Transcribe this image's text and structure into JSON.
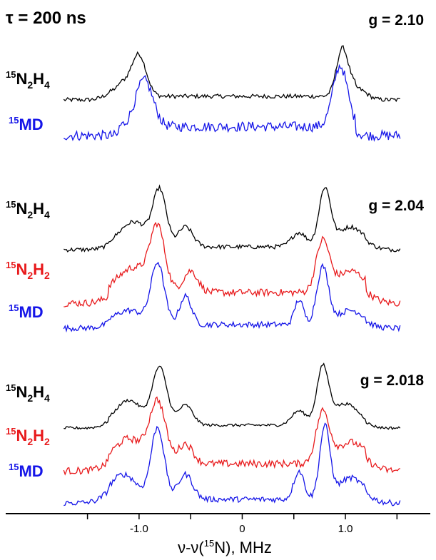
{
  "chart_data": {
    "type": "line",
    "title": "τ = 200 ns",
    "xlabel": {
      "prefix": "ν-ν(",
      "sup": "15",
      "suffix": "N), MHz"
    },
    "xlim": [
      -1.85,
      1.65
    ],
    "xticks": [
      -1.5,
      -1.0,
      -0.5,
      0,
      0.5,
      1.0,
      1.5
    ],
    "xtick_labels": [
      "",
      "-1.0",
      "",
      "0",
      "",
      "1.0",
      ""
    ],
    "colors": {
      "black": "#000000",
      "red": "#e8191b",
      "blue": "#1515e8"
    },
    "panels": [
      {
        "g_label": "g = 2.10",
        "series": [
          {
            "id": "s1",
            "name_parts": [
              "15",
              "N",
              "2",
              "H",
              "4"
            ],
            "color": "black",
            "baseline": 140,
            "noise": 3,
            "peaks": [
              {
                "x": -1.0,
                "a": 55,
                "w": 0.1
              },
              {
                "x": -1.18,
                "a": 18,
                "w": 0.15
              },
              {
                "x": 0.97,
                "a": 65,
                "w": 0.08
              },
              {
                "x": 1.12,
                "a": 15,
                "w": 0.12
              }
            ],
            "plateau": {
              "a": 10,
              "from": -1.2,
              "to": 1.1
            }
          },
          {
            "id": "s2",
            "name_parts": [
              "15",
              "MD"
            ],
            "color": "blue",
            "baseline": 190,
            "noise": 7,
            "peaks": [
              {
                "x": -0.95,
                "a": 65,
                "w": 0.12
              },
              {
                "x": 0.95,
                "a": 85,
                "w": 0.1
              }
            ],
            "plateau": {
              "a": 25,
              "from": -1.2,
              "to": 1.1
            }
          }
        ]
      },
      {
        "g_label": "g = 2.04",
        "series": [
          {
            "id": "s3",
            "name_parts": [
              "15",
              "N",
              "2",
              "H",
              "4"
            ],
            "color": "black",
            "baseline": 350,
            "noise": 3,
            "peaks": [
              {
                "x": -0.8,
                "a": 75,
                "w": 0.09
              },
              {
                "x": -1.05,
                "a": 35,
                "w": 0.2
              },
              {
                "x": -0.55,
                "a": 28,
                "w": 0.1
              },
              {
                "x": 0.8,
                "a": 80,
                "w": 0.08
              },
              {
                "x": 1.05,
                "a": 28,
                "w": 0.18
              },
              {
                "x": 0.55,
                "a": 20,
                "w": 0.1
              }
            ],
            "plateau": {
              "a": 8,
              "from": -1.3,
              "to": 1.2
            }
          },
          {
            "id": "s4",
            "name_parts": [
              "15",
              "N",
              "2",
              "H",
              "2"
            ],
            "color": "red",
            "baseline": 425,
            "noise": 5,
            "peaks": [
              {
                "x": -0.82,
                "a": 85,
                "w": 0.1
              },
              {
                "x": -1.05,
                "a": 35,
                "w": 0.22
              },
              {
                "x": -0.5,
                "a": 30,
                "w": 0.1
              },
              {
                "x": 0.78,
                "a": 70,
                "w": 0.09
              },
              {
                "x": 1.05,
                "a": 30,
                "w": 0.2
              }
            ],
            "plateau": {
              "a": 30,
              "from": -1.3,
              "to": 1.2
            }
          },
          {
            "id": "s5",
            "name_parts": [
              "15",
              "MD"
            ],
            "color": "blue",
            "baseline": 460,
            "noise": 4,
            "peaks": [
              {
                "x": -0.82,
                "a": 85,
                "w": 0.09
              },
              {
                "x": -1.1,
                "a": 20,
                "w": 0.2
              },
              {
                "x": -0.55,
                "a": 40,
                "w": 0.08
              },
              {
                "x": 0.78,
                "a": 80,
                "w": 0.08
              },
              {
                "x": 0.55,
                "a": 35,
                "w": 0.06
              },
              {
                "x": 1.05,
                "a": 20,
                "w": 0.18
              }
            ],
            "plateau": {
              "a": 10,
              "from": -1.3,
              "to": 1.2
            }
          }
        ]
      },
      {
        "g_label": "g = 2.018",
        "series": [
          {
            "id": "s6",
            "name_parts": [
              "15",
              "N",
              "2",
              "H",
              "4"
            ],
            "color": "black",
            "baseline": 600,
            "noise": 2,
            "peaks": [
              {
                "x": -0.8,
                "a": 80,
                "w": 0.1
              },
              {
                "x": -1.1,
                "a": 35,
                "w": 0.18
              },
              {
                "x": -0.55,
                "a": 28,
                "w": 0.1
              },
              {
                "x": 0.78,
                "a": 78,
                "w": 0.08
              },
              {
                "x": 1.0,
                "a": 30,
                "w": 0.18
              },
              {
                "x": 0.55,
                "a": 20,
                "w": 0.1
              }
            ],
            "plateau": {
              "a": 8,
              "from": -1.3,
              "to": 1.2
            }
          },
          {
            "id": "s7",
            "name_parts": [
              "15",
              "N",
              "2",
              "H",
              "2"
            ],
            "color": "red",
            "baseline": 660,
            "noise": 5,
            "peaks": [
              {
                "x": -0.82,
                "a": 85,
                "w": 0.11
              },
              {
                "x": -1.1,
                "a": 35,
                "w": 0.2
              },
              {
                "x": -0.55,
                "a": 28,
                "w": 0.1
              },
              {
                "x": 0.78,
                "a": 70,
                "w": 0.09
              },
              {
                "x": 1.05,
                "a": 30,
                "w": 0.2
              }
            ],
            "plateau": {
              "a": 20,
              "from": -1.3,
              "to": 1.2
            }
          },
          {
            "id": "s8",
            "name_parts": [
              "15",
              "MD"
            ],
            "color": "blue",
            "baseline": 705,
            "noise": 4,
            "peaks": [
              {
                "x": -0.82,
                "a": 100,
                "w": 0.09
              },
              {
                "x": -1.15,
                "a": 35,
                "w": 0.18
              },
              {
                "x": -0.55,
                "a": 35,
                "w": 0.1
              },
              {
                "x": 0.8,
                "a": 100,
                "w": 0.07
              },
              {
                "x": 0.55,
                "a": 40,
                "w": 0.07
              },
              {
                "x": 1.05,
                "a": 30,
                "w": 0.18
              }
            ],
            "plateau": {
              "a": 10,
              "from": -1.3,
              "to": 1.2
            }
          }
        ]
      }
    ]
  }
}
